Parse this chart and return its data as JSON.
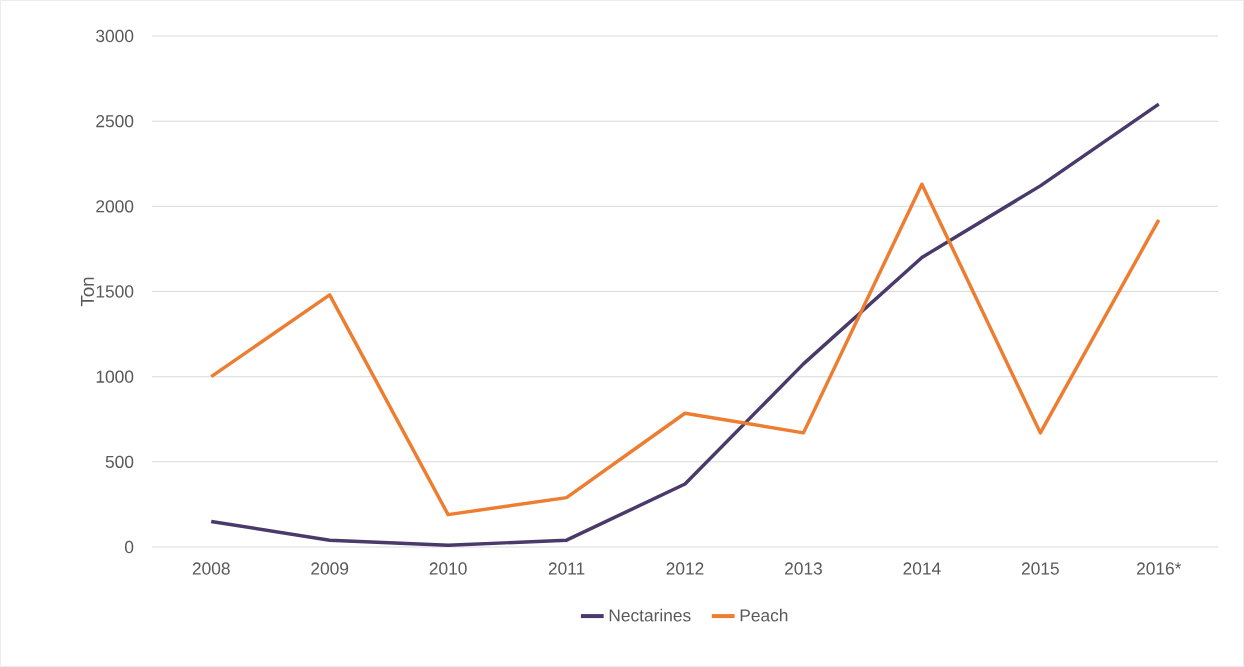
{
  "chart_data": {
    "type": "line",
    "ylabel": "Ton",
    "categories": [
      "2008",
      "2009",
      "2010",
      "2011",
      "2012",
      "2013",
      "2014",
      "2015",
      "2016*"
    ],
    "series": [
      {
        "name": "Nectarines",
        "color": "#4a3a6b",
        "values": [
          150,
          40,
          10,
          40,
          370,
          1075,
          1700,
          2120,
          2600
        ]
      },
      {
        "name": "Peach",
        "color": "#ed7d31",
        "values": [
          1000,
          1480,
          190,
          290,
          785,
          670,
          2130,
          670,
          1920
        ]
      }
    ],
    "ylim": [
      0,
      3000
    ],
    "yticks": [
      0,
      500,
      1000,
      1500,
      2000,
      2500,
      3000
    ],
    "grid": "y",
    "legend": "bottom",
    "marker": "none",
    "line_style": "solid"
  }
}
